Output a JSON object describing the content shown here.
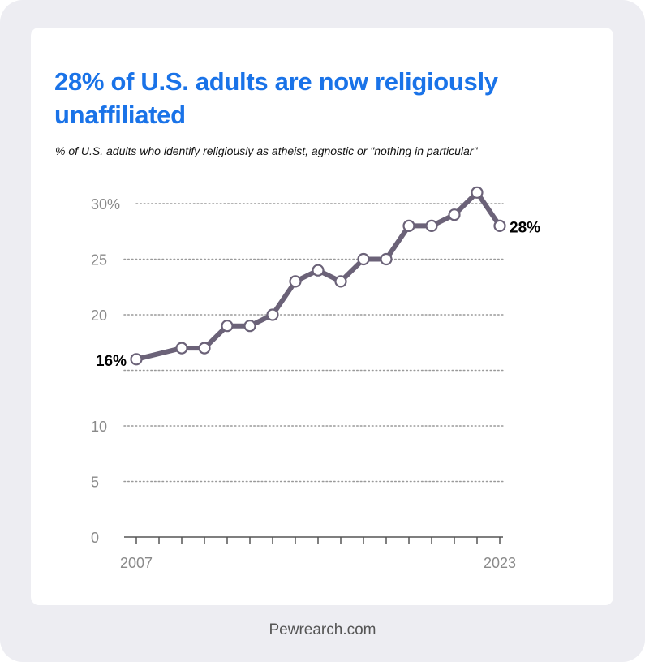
{
  "card": {
    "title": "28% of U.S. adults are now religiously unaffiliated",
    "subtitle": "% of U.S. adults who identify religiously as atheist, agnostic or \"nothing in particular\"",
    "footer": "Pewrearch.com"
  },
  "colors": {
    "title": "#1a73e8",
    "line": "#6b6278",
    "marker_fill": "#ffffff",
    "grid": "#9a9a9a",
    "background": "#ededf2"
  },
  "chart_data": {
    "type": "line",
    "title": "28% of U.S. adults are now religiously unaffiliated",
    "subtitle": "% of U.S. adults who identify religiously as atheist, agnostic or \"nothing in particular\"",
    "xlabel": "",
    "ylabel": "",
    "xlim": [
      2007,
      2023
    ],
    "ylim": [
      0,
      30
    ],
    "y_ticks": [
      0,
      5,
      10,
      15,
      20,
      25,
      30
    ],
    "y_tick_labels": [
      "0",
      "5",
      "10",
      "",
      "20",
      "25",
      "30%"
    ],
    "x_tick_labels_shown": [
      "2007",
      "2023"
    ],
    "grid": true,
    "legend": "none",
    "series": [
      {
        "name": "Religiously unaffiliated",
        "x": [
          2007,
          2009,
          2010,
          2011,
          2012,
          2013,
          2014,
          2015,
          2016,
          2017,
          2018,
          2019,
          2020,
          2021,
          2022,
          2023
        ],
        "values": [
          16,
          17,
          17,
          19,
          19,
          20,
          23,
          24,
          23,
          25,
          25,
          28,
          28,
          29,
          31,
          28
        ]
      }
    ],
    "annotations": [
      {
        "x": 2007,
        "label": "16%"
      },
      {
        "x": 2023,
        "label": "28%"
      }
    ]
  }
}
